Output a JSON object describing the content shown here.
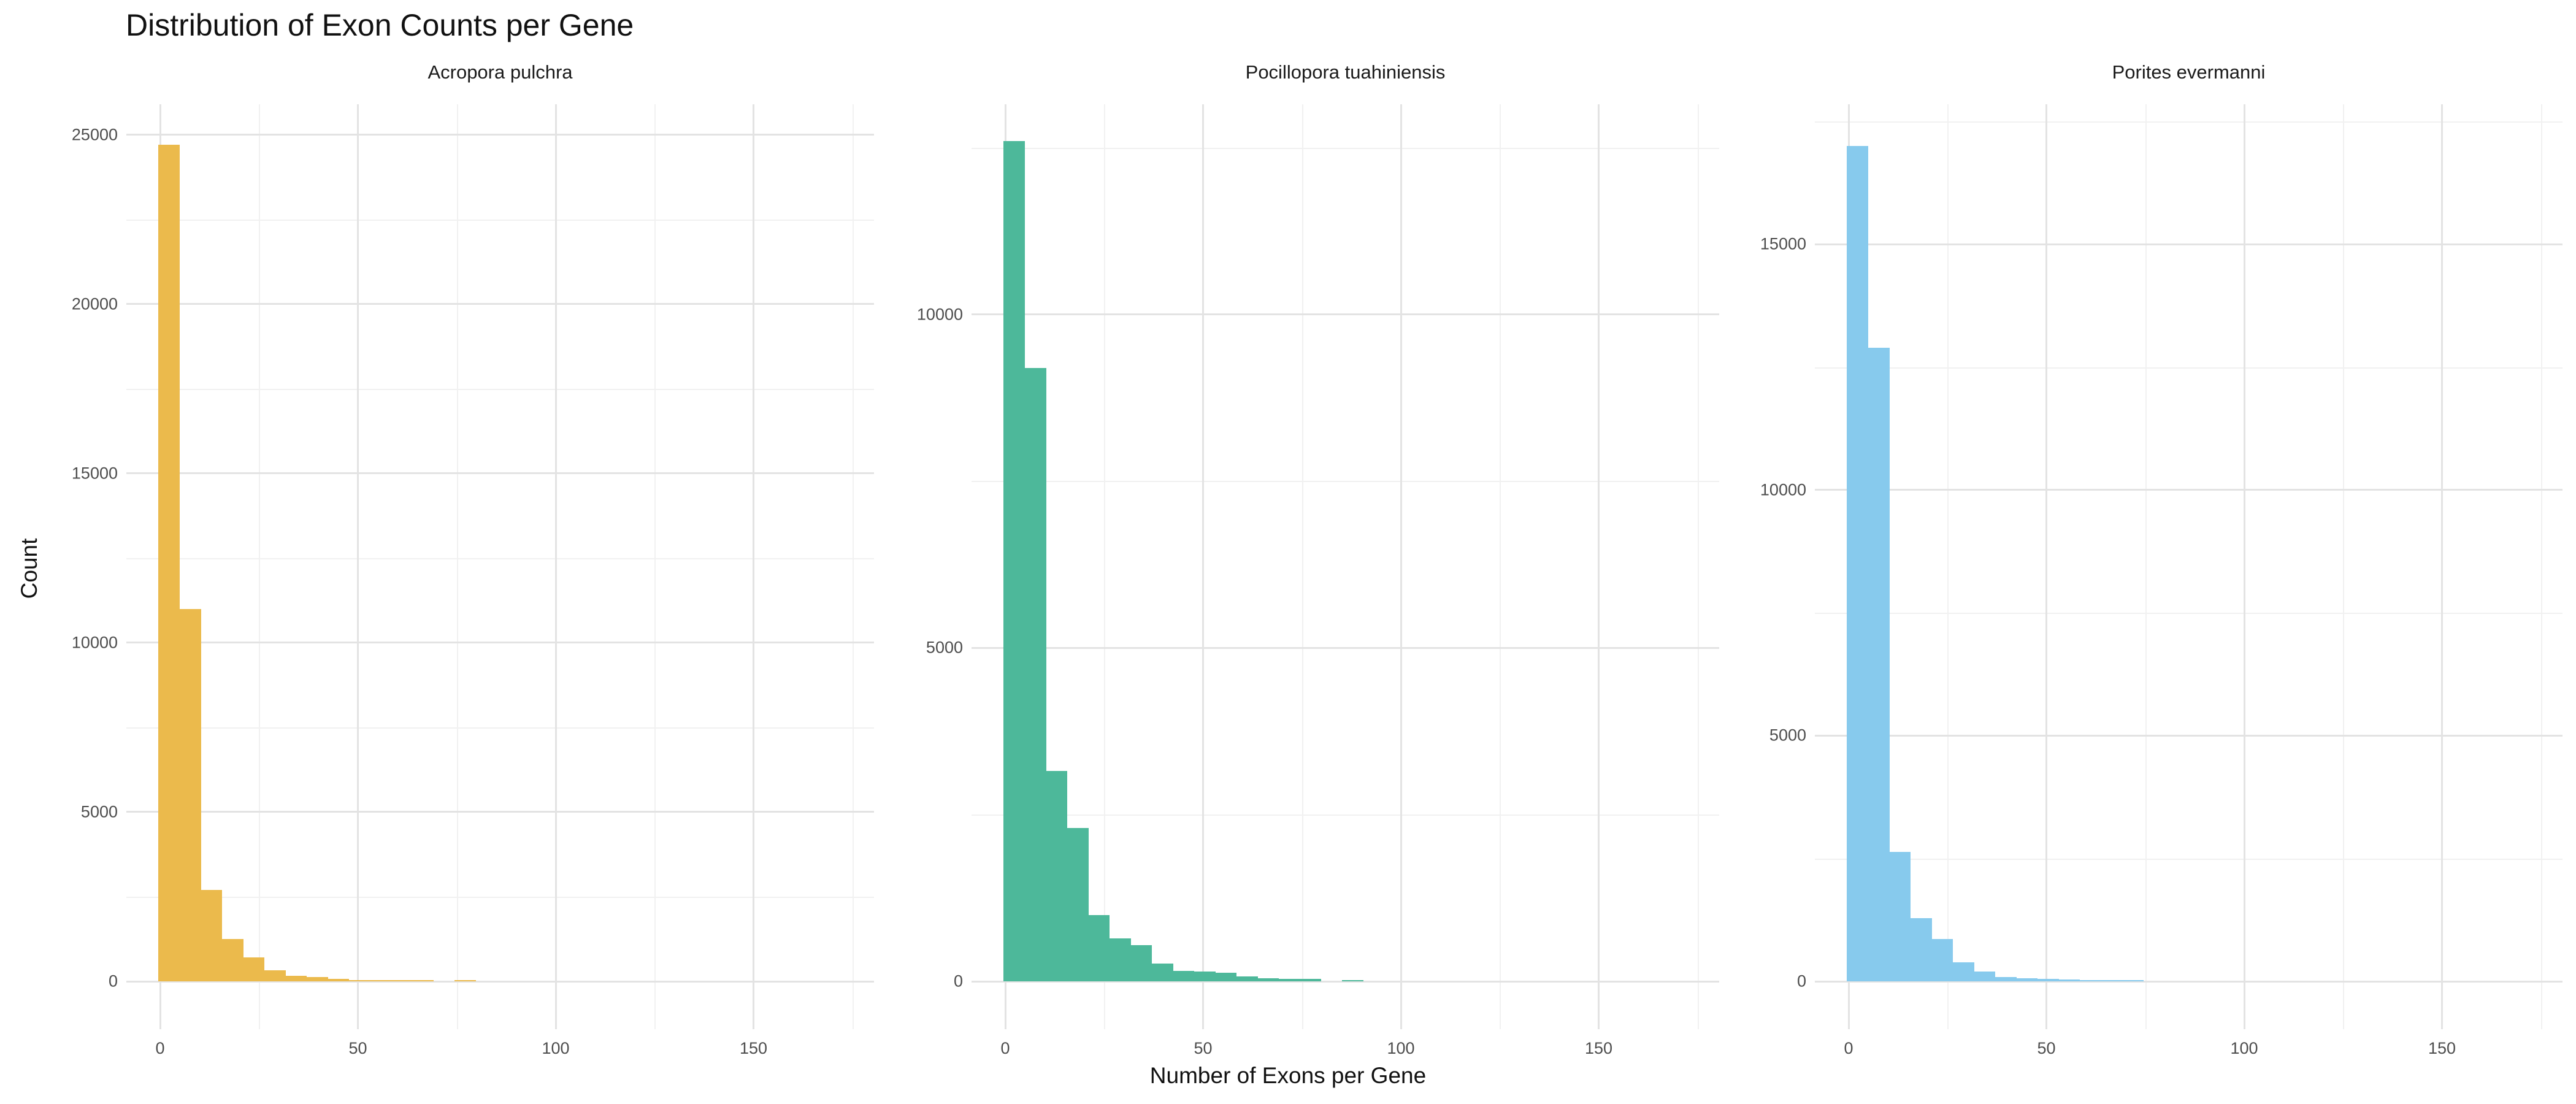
{
  "title": "Distribution of Exon Counts per Gene",
  "axes": {
    "x_title": "Number of Exons per Gene",
    "y_title": "Count"
  },
  "theme": {
    "background": "#FFFFFF",
    "grid_major_color": "#E3E3E3",
    "grid_minor_color": "#F1F1F1",
    "tick_label_color": "#4D4D4D",
    "text_color": "#1A1A1A"
  },
  "chart_data": [
    {
      "type": "bar",
      "subtype": "histogram",
      "title": "Acropora pulchra",
      "color": "#EBBA4C",
      "bin_width": 5.35,
      "bin_start": 0,
      "xlim": [
        -8.5,
        180.5
      ],
      "x_ticks": [
        0,
        50,
        100,
        150
      ],
      "x_minor_ticks": [
        25,
        75,
        125,
        175
      ],
      "ylim": [
        0,
        25900
      ],
      "y_major_ticks": [
        0,
        5000,
        10000,
        15000,
        20000,
        25000
      ],
      "y_minor_ticks": [
        2500,
        7500,
        12500,
        17500,
        22500
      ],
      "values": [
        24700,
        11000,
        2700,
        1250,
        700,
        320,
        170,
        120,
        70,
        40,
        25,
        12,
        28,
        0,
        26
      ]
    },
    {
      "type": "bar",
      "subtype": "histogram",
      "title": "Pocillopora tuahiniensis",
      "color": "#4DB89A",
      "bin_width": 5.35,
      "bin_start": 0,
      "xlim": [
        -8.5,
        180.5
      ],
      "x_ticks": [
        0,
        50,
        100,
        150
      ],
      "x_minor_ticks": [
        25,
        75,
        125,
        175
      ],
      "ylim": [
        0,
        13150
      ],
      "y_major_ticks": [
        0,
        5000,
        10000
      ],
      "y_minor_ticks": [
        2500,
        7500,
        12500
      ],
      "values": [
        12600,
        9200,
        3150,
        2300,
        990,
        640,
        540,
        265,
        160,
        150,
        130,
        75,
        45,
        35,
        38,
        0,
        18
      ]
    },
    {
      "type": "bar",
      "subtype": "histogram",
      "title": "Porites evermanni",
      "color": "#87CAED",
      "bin_width": 5.35,
      "bin_start": 0,
      "xlim": [
        -8.5,
        180.5
      ],
      "x_ticks": [
        0,
        50,
        100,
        150
      ],
      "x_minor_ticks": [
        25,
        75,
        125,
        175
      ],
      "ylim": [
        0,
        17850
      ],
      "y_major_ticks": [
        0,
        5000,
        10000,
        15000
      ],
      "y_minor_ticks": [
        2500,
        7500,
        12500,
        17500
      ],
      "values": [
        17000,
        12900,
        2640,
        1290,
        860,
        390,
        195,
        85,
        65,
        55,
        42,
        28,
        15,
        8
      ]
    }
  ]
}
